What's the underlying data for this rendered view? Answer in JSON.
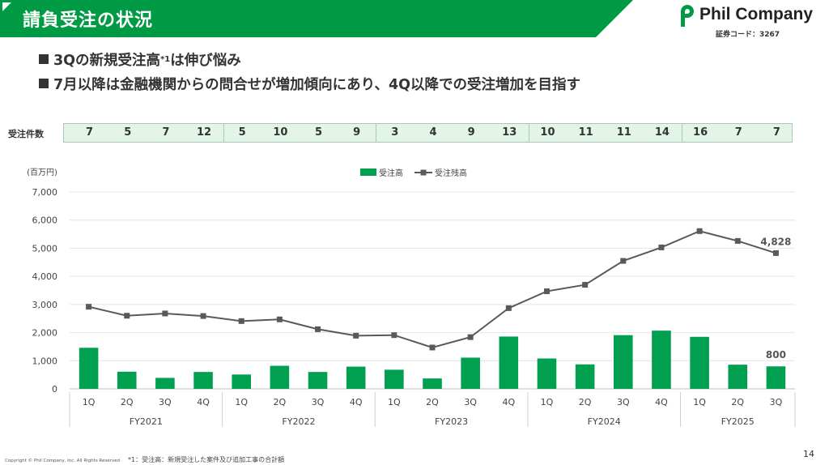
{
  "header": {
    "title": "請負受注の状況",
    "logo_text": "Phil Company",
    "stock_code": "証券コード：3267",
    "brand_color": "#009a44"
  },
  "bullets": [
    {
      "text": "3Qの新規受注高",
      "sup": "*1",
      "text_after": "は伸び悩み"
    },
    {
      "text": "7月以降は金融機関からの問合せが増加傾向にあり、4Q以降での受注増加を目指す",
      "sup": "",
      "text_after": ""
    }
  ],
  "order_counts": {
    "label": "受注件数",
    "values": [
      "7",
      "5",
      "7",
      "12",
      "5",
      "10",
      "5",
      "9",
      "3",
      "4",
      "9",
      "13",
      "10",
      "11",
      "11",
      "14",
      "16",
      "7",
      "7"
    ]
  },
  "chart_data": {
    "type": "bar+line",
    "unit_label": "(百万円)",
    "ylim": [
      0,
      7000
    ],
    "yticks": [
      "0",
      "1,000",
      "2,000",
      "3,000",
      "4,000",
      "5,000",
      "6,000",
      "7,000"
    ],
    "ytick_values": [
      0,
      1000,
      2000,
      3000,
      4000,
      5000,
      6000,
      7000
    ],
    "categories": [
      "1Q",
      "2Q",
      "3Q",
      "4Q",
      "1Q",
      "2Q",
      "3Q",
      "4Q",
      "1Q",
      "2Q",
      "3Q",
      "4Q",
      "1Q",
      "2Q",
      "3Q",
      "4Q",
      "1Q",
      "2Q",
      "3Q"
    ],
    "groups": [
      {
        "name": "FY2021",
        "count": 4
      },
      {
        "name": "FY2022",
        "count": 4
      },
      {
        "name": "FY2023",
        "count": 4
      },
      {
        "name": "FY2024",
        "count": 4
      },
      {
        "name": "FY2025",
        "count": 3
      }
    ],
    "series": [
      {
        "name": "受注高",
        "type": "bar",
        "color": "#00a050",
        "values": [
          1460,
          610,
          390,
          600,
          510,
          820,
          600,
          790,
          680,
          370,
          1110,
          1860,
          1080,
          870,
          1910,
          2070,
          1850,
          860,
          800
        ]
      },
      {
        "name": "受注残高",
        "type": "line",
        "color": "#595959",
        "values": [
          2920,
          2600,
          2680,
          2590,
          2410,
          2470,
          2120,
          1890,
          1910,
          1470,
          1840,
          2870,
          3470,
          3700,
          4550,
          5030,
          5610,
          5260,
          4828
        ]
      }
    ],
    "data_labels": [
      {
        "series": 0,
        "index": 18,
        "text": "800"
      },
      {
        "series": 1,
        "index": 18,
        "text": "4,828"
      }
    ],
    "legend_position": "top-center",
    "grid": true
  },
  "footer": {
    "copyright": "Copyright © Phil Company, Inc.  All Rights Reserved",
    "note": "*1：受注高：新規受注した案件及び追加工事の合計額",
    "page": "14"
  }
}
